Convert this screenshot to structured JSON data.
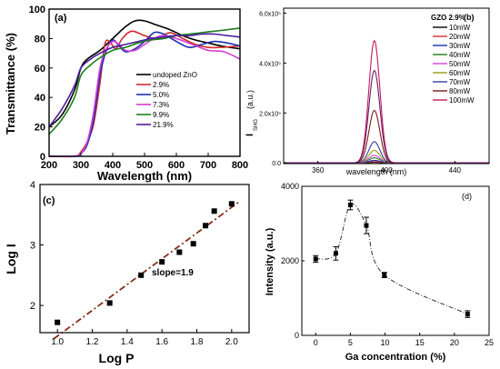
{
  "figure": {
    "colors": {
      "axis": "#000000",
      "frame": "#000000"
    }
  },
  "chart_data": [
    {
      "id": "a",
      "type": "line",
      "panel_label": "(a)",
      "xlabel": "Wavelength (nm)",
      "ylabel": "Transmittance (%)",
      "xlim": [
        200,
        800
      ],
      "ylim": [
        0,
        100
      ],
      "x_ticks": [
        200,
        300,
        400,
        500,
        600,
        700,
        800
      ],
      "y_ticks": [
        0,
        20,
        40,
        60,
        80,
        100
      ],
      "legend_position": "center-right",
      "grid": false,
      "series": [
        {
          "name": "undoped ZnO",
          "color": "#000000",
          "x": [
            200,
            240,
            280,
            300,
            320,
            360,
            400,
            440,
            470,
            500,
            540,
            580,
            620,
            660,
            700,
            740,
            800
          ],
          "y": [
            20,
            28,
            45,
            60,
            66,
            72,
            80,
            88,
            92,
            92,
            89,
            86,
            82,
            79,
            77,
            75,
            73
          ]
        },
        {
          "name": "2.9%",
          "color": "#d42a2a",
          "x": [
            200,
            280,
            300,
            320,
            340,
            360,
            375,
            390,
            410,
            430,
            460,
            500,
            540,
            580,
            620,
            660,
            700,
            740,
            800
          ],
          "y": [
            0,
            0,
            3,
            10,
            22,
            50,
            76,
            78,
            73,
            80,
            85,
            82,
            80,
            84,
            80,
            76,
            74,
            74,
            75
          ]
        },
        {
          "name": "5.0%",
          "color": "#1f2fb0",
          "x": [
            200,
            280,
            300,
            320,
            340,
            360,
            380,
            400,
            420,
            440,
            470,
            500,
            530,
            560,
            600,
            640,
            680,
            720,
            760,
            800
          ],
          "y": [
            0,
            0,
            2,
            8,
            25,
            55,
            72,
            79,
            75,
            71,
            73,
            78,
            84,
            83,
            78,
            74,
            76,
            78,
            77,
            75
          ]
        },
        {
          "name": "7.3%",
          "color": "#d43fd4",
          "x": [
            200,
            280,
            300,
            320,
            340,
            360,
            380,
            400,
            420,
            440,
            470,
            500,
            530,
            560,
            600,
            650,
            700,
            750,
            800
          ],
          "y": [
            0,
            0,
            2,
            10,
            30,
            60,
            73,
            78,
            76,
            72,
            72,
            76,
            80,
            82,
            80,
            76,
            72,
            71,
            66
          ]
        },
        {
          "name": "9.9%",
          "color": "#1a7f1a",
          "x": [
            200,
            240,
            280,
            300,
            330,
            360,
            400,
            440,
            480,
            520,
            560,
            600,
            640,
            680,
            720,
            760,
            800
          ],
          "y": [
            15,
            25,
            40,
            55,
            62,
            67,
            72,
            74,
            77,
            79,
            80,
            82,
            83,
            84,
            85,
            86,
            87
          ]
        },
        {
          "name": "21.9%",
          "color": "#4b1a9f",
          "x": [
            200,
            240,
            280,
            300,
            330,
            360,
            400,
            440,
            480,
            520,
            560,
            600,
            640,
            680,
            720,
            760,
            800
          ],
          "y": [
            20,
            32,
            48,
            60,
            66,
            70,
            74,
            76,
            78,
            80,
            81,
            82,
            82,
            83,
            83,
            82,
            81
          ]
        }
      ]
    },
    {
      "id": "b",
      "type": "line",
      "panel_label": "(b)",
      "xlabel": "wavelength (nm)",
      "ylabel_main": "I",
      "ylabel_sub": "SHG",
      "ylabel_unit": "(a.u.)",
      "xlim": [
        340,
        460
      ],
      "ylim": [
        -3000,
        620000
      ],
      "x_ticks": [
        360,
        400,
        440
      ],
      "y_ticks": [
        0,
        200000,
        400000,
        600000
      ],
      "y_tick_labels": [
        "0.0",
        "2.0x10⁵",
        "4.0x10⁵",
        "6.0x10⁵"
      ],
      "legend_title": "GZO 2.9%",
      "legend_position": "top-right",
      "peak_center": 393,
      "peak_sigma": 3.2,
      "series": [
        {
          "name": "10mW",
          "color": "#000000",
          "peak": 2000
        },
        {
          "name": "20mW",
          "color": "#d42a2a",
          "peak": 5000
        },
        {
          "name": "30mW",
          "color": "#1f2fb0",
          "peak": 10000
        },
        {
          "name": "40mW",
          "color": "#1a7f1a",
          "peak": 20000
        },
        {
          "name": "50mW",
          "color": "#d43fd4",
          "peak": 30000
        },
        {
          "name": "60mW",
          "color": "#9a9a1a",
          "peak": 50000
        },
        {
          "name": "70mW",
          "color": "#3a3aa0",
          "peak": 85000
        },
        {
          "name": "80mW",
          "color": "#7a1a1a",
          "peak": 210000
        },
        {
          "name": "100mW",
          "color": "#c2185b",
          "peak": 490000
        }
      ],
      "extra_series": [
        {
          "color": "#6a1a6a",
          "peak": 370000
        }
      ]
    },
    {
      "id": "c",
      "type": "scatter",
      "panel_label": "(c)",
      "xlabel": "Log P",
      "ylabel": "Log I",
      "xlim": [
        0.9,
        2.1
      ],
      "ylim": [
        1.55,
        4.0
      ],
      "x_ticks": [
        1.0,
        1.2,
        1.4,
        1.6,
        1.8,
        2.0
      ],
      "x_tick_labels": [
        "1.0",
        "1.2",
        "1.4",
        "1.6",
        "1.8",
        "2.0"
      ],
      "y_ticks": [
        2,
        3,
        4
      ],
      "points_x": [
        1.0,
        1.3,
        1.48,
        1.6,
        1.7,
        1.78,
        1.85,
        1.9,
        2.0
      ],
      "points_y": [
        1.72,
        2.04,
        2.5,
        2.72,
        2.88,
        3.02,
        3.32,
        3.56,
        3.68
      ],
      "fit_line": {
        "x": [
          0.98,
          2.05
        ],
        "y": [
          1.45,
          3.73
        ],
        "color": "#8b2b1a"
      },
      "annotation": "slope=1.9"
    },
    {
      "id": "d",
      "type": "line",
      "panel_label": "(d)",
      "xlabel": "Ga concentration (%)",
      "ylabel": "Intensity (a.u.)",
      "xlim": [
        -2,
        25
      ],
      "ylim": [
        0,
        4000
      ],
      "x_ticks": [
        0,
        5,
        10,
        15,
        20,
        25
      ],
      "y_ticks": [
        0,
        2000,
        4000
      ],
      "x": [
        0,
        2.9,
        5.0,
        7.3,
        9.9,
        21.9
      ],
      "y": [
        2050,
        2200,
        3500,
        2950,
        1620,
        570
      ],
      "errors": [
        90,
        180,
        130,
        220,
        70,
        90
      ]
    }
  ]
}
